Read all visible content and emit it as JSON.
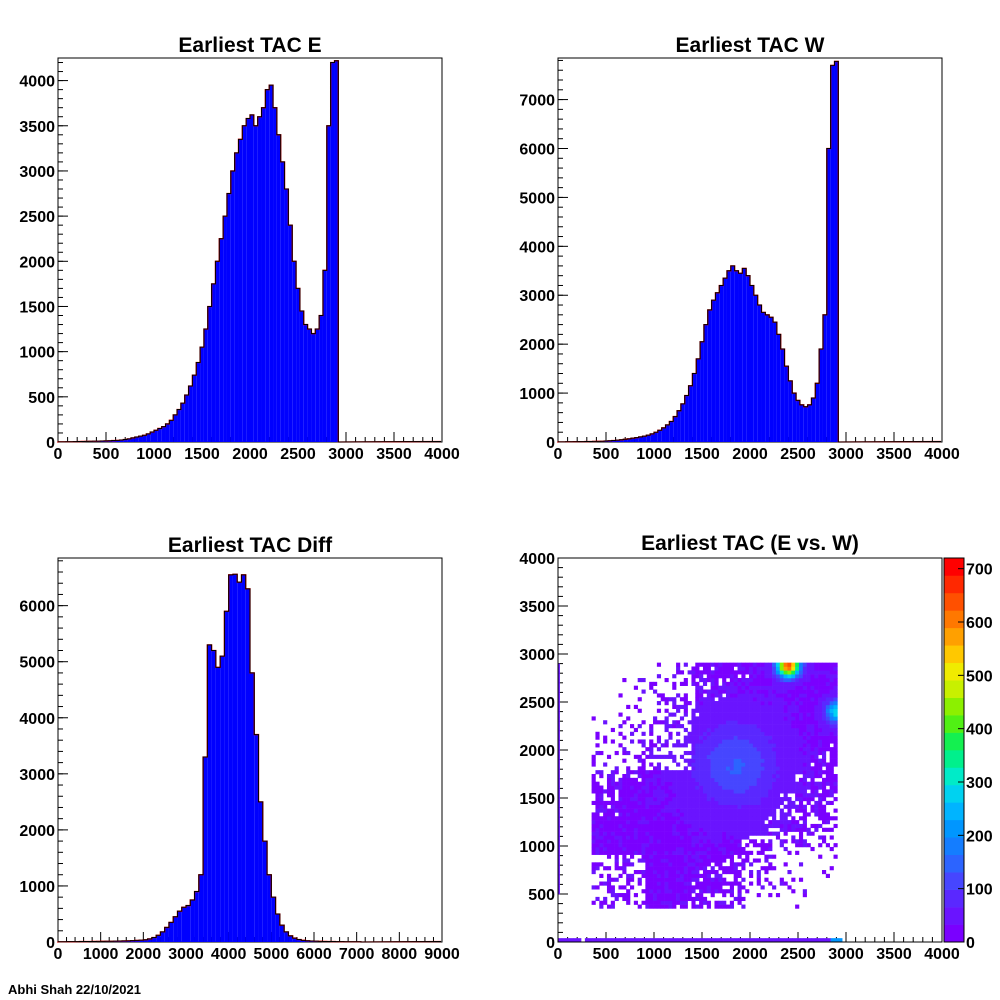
{
  "chart_data": [
    {
      "type": "histogram",
      "title": "Earliest TAC E",
      "xlim": [
        0,
        4000
      ],
      "ylim": [
        0,
        4250
      ],
      "xticks": [
        0,
        500,
        1000,
        1500,
        2000,
        2500,
        3000,
        3500,
        4000
      ],
      "yticks": [
        0,
        500,
        1000,
        1500,
        2000,
        2500,
        3000,
        3500,
        4000
      ],
      "bin_width": 40,
      "fill_color": "#0000ff",
      "overlay_color": "#ff0000",
      "x": [
        0,
        40,
        80,
        120,
        160,
        200,
        240,
        280,
        320,
        360,
        400,
        440,
        480,
        520,
        560,
        600,
        640,
        680,
        720,
        760,
        800,
        840,
        880,
        920,
        960,
        1000,
        1040,
        1080,
        1120,
        1160,
        1200,
        1240,
        1280,
        1320,
        1360,
        1400,
        1440,
        1480,
        1520,
        1560,
        1600,
        1640,
        1680,
        1720,
        1760,
        1800,
        1840,
        1880,
        1920,
        1960,
        2000,
        2040,
        2080,
        2120,
        2160,
        2200,
        2240,
        2280,
        2320,
        2360,
        2400,
        2440,
        2480,
        2520,
        2560,
        2600,
        2640,
        2680,
        2720,
        2760,
        2800,
        2840,
        2880
      ],
      "values": [
        2,
        2,
        3,
        3,
        4,
        5,
        6,
        7,
        8,
        9,
        10,
        11,
        12,
        14,
        16,
        18,
        22,
        28,
        35,
        45,
        55,
        65,
        75,
        90,
        110,
        130,
        150,
        170,
        200,
        240,
        300,
        360,
        430,
        520,
        620,
        740,
        880,
        1050,
        1250,
        1500,
        1750,
        2000,
        2250,
        2500,
        2750,
        3000,
        3200,
        3350,
        3500,
        3580,
        3620,
        3500,
        3600,
        3700,
        3900,
        3950,
        3700,
        3400,
        3100,
        2800,
        2400,
        2000,
        1700,
        1450,
        1300,
        1250,
        1200,
        1250,
        1400,
        1900,
        3500,
        4200,
        4220
      ]
    },
    {
      "type": "histogram",
      "title": "Earliest TAC W",
      "xlim": [
        0,
        4000
      ],
      "ylim": [
        0,
        7850
      ],
      "xticks": [
        0,
        500,
        1000,
        1500,
        2000,
        2500,
        3000,
        3500,
        4000
      ],
      "yticks": [
        0,
        1000,
        2000,
        3000,
        4000,
        5000,
        6000,
        7000
      ],
      "bin_width": 40,
      "fill_color": "#0000ff",
      "overlay_color": "#ff0000",
      "x": [
        0,
        40,
        80,
        120,
        160,
        200,
        240,
        280,
        320,
        360,
        400,
        440,
        480,
        520,
        560,
        600,
        640,
        680,
        720,
        760,
        800,
        840,
        880,
        920,
        960,
        1000,
        1040,
        1080,
        1120,
        1160,
        1200,
        1240,
        1280,
        1320,
        1360,
        1400,
        1440,
        1480,
        1520,
        1560,
        1600,
        1640,
        1680,
        1720,
        1760,
        1800,
        1840,
        1880,
        1920,
        1960,
        2000,
        2040,
        2080,
        2120,
        2160,
        2200,
        2240,
        2280,
        2320,
        2360,
        2400,
        2440,
        2480,
        2520,
        2560,
        2600,
        2640,
        2680,
        2720,
        2760,
        2800,
        2840,
        2880
      ],
      "values": [
        3,
        3,
        4,
        5,
        6,
        7,
        8,
        9,
        10,
        12,
        14,
        16,
        20,
        25,
        30,
        38,
        45,
        55,
        65,
        78,
        90,
        105,
        120,
        140,
        165,
        200,
        240,
        290,
        350,
        420,
        520,
        640,
        780,
        950,
        1150,
        1400,
        1700,
        2050,
        2400,
        2700,
        2900,
        3050,
        3200,
        3350,
        3500,
        3600,
        3500,
        3450,
        3550,
        3400,
        3200,
        3000,
        2800,
        2650,
        2600,
        2550,
        2450,
        2200,
        1900,
        1550,
        1250,
        1000,
        850,
        760,
        720,
        760,
        900,
        1200,
        1900,
        2600,
        6000,
        7700,
        7780
      ]
    },
    {
      "type": "histogram",
      "title": "Earliest TAC Diff",
      "xlim": [
        0,
        9000
      ],
      "ylim": [
        0,
        6850
      ],
      "xticks": [
        0,
        1000,
        2000,
        3000,
        4000,
        5000,
        6000,
        7000,
        8000,
        9000
      ],
      "yticks": [
        0,
        1000,
        2000,
        3000,
        4000,
        5000,
        6000
      ],
      "bin_width": 100,
      "fill_color": "#0000ff",
      "overlay_color": "#ff0000",
      "x": [
        0,
        100,
        200,
        300,
        400,
        500,
        600,
        700,
        800,
        900,
        1000,
        1100,
        1200,
        1300,
        1400,
        1500,
        1600,
        1700,
        1800,
        1900,
        2000,
        2100,
        2200,
        2300,
        2400,
        2500,
        2600,
        2700,
        2800,
        2900,
        3000,
        3100,
        3200,
        3300,
        3400,
        3500,
        3600,
        3700,
        3800,
        3900,
        4000,
        4100,
        4200,
        4300,
        4400,
        4500,
        4600,
        4700,
        4800,
        4900,
        5000,
        5100,
        5200,
        5300,
        5400,
        5500,
        5600,
        5700,
        5800,
        5900,
        6000,
        6100,
        6200,
        6300,
        6400,
        6500,
        6600,
        6700,
        6800,
        6900,
        7000
      ],
      "values": [
        5,
        5,
        6,
        6,
        7,
        8,
        8,
        9,
        10,
        11,
        12,
        13,
        14,
        15,
        17,
        19,
        21,
        24,
        28,
        33,
        40,
        55,
        80,
        120,
        180,
        260,
        350,
        450,
        550,
        620,
        650,
        750,
        900,
        1200,
        3300,
        5300,
        5200,
        4900,
        5100,
        5900,
        6550,
        6560,
        6420,
        6550,
        6300,
        4800,
        3700,
        2500,
        1800,
        1200,
        800,
        500,
        300,
        180,
        110,
        70,
        45,
        30,
        22,
        18,
        15,
        12,
        10,
        9,
        8,
        7,
        6,
        5,
        5,
        4,
        4
      ]
    },
    {
      "type": "heatmap",
      "title": "Earliest TAC (E vs. W)",
      "xlim": [
        0,
        4000
      ],
      "ylim": [
        0,
        4000
      ],
      "xticks": [
        0,
        500,
        1000,
        1500,
        2000,
        2500,
        3000,
        3500,
        4000
      ],
      "yticks": [
        0,
        500,
        1000,
        1500,
        2000,
        2500,
        3000,
        3500,
        4000
      ],
      "zlim": [
        0,
        720
      ],
      "zticks": [
        0,
        100,
        200,
        300,
        400,
        500,
        600,
        700
      ],
      "data_region_x": [
        350,
        2900
      ],
      "data_region_y": [
        350,
        2900
      ],
      "hotspots": [
        {
          "x": 1850,
          "y": 1850,
          "z": 130
        },
        {
          "x": 2400,
          "y": 2880,
          "z": 650
        },
        {
          "x": 2900,
          "y": 2400,
          "z": 280
        },
        {
          "x": 2900,
          "y": 40,
          "z": 220
        }
      ]
    }
  ],
  "footer": "Abhi Shah  22/10/2021"
}
